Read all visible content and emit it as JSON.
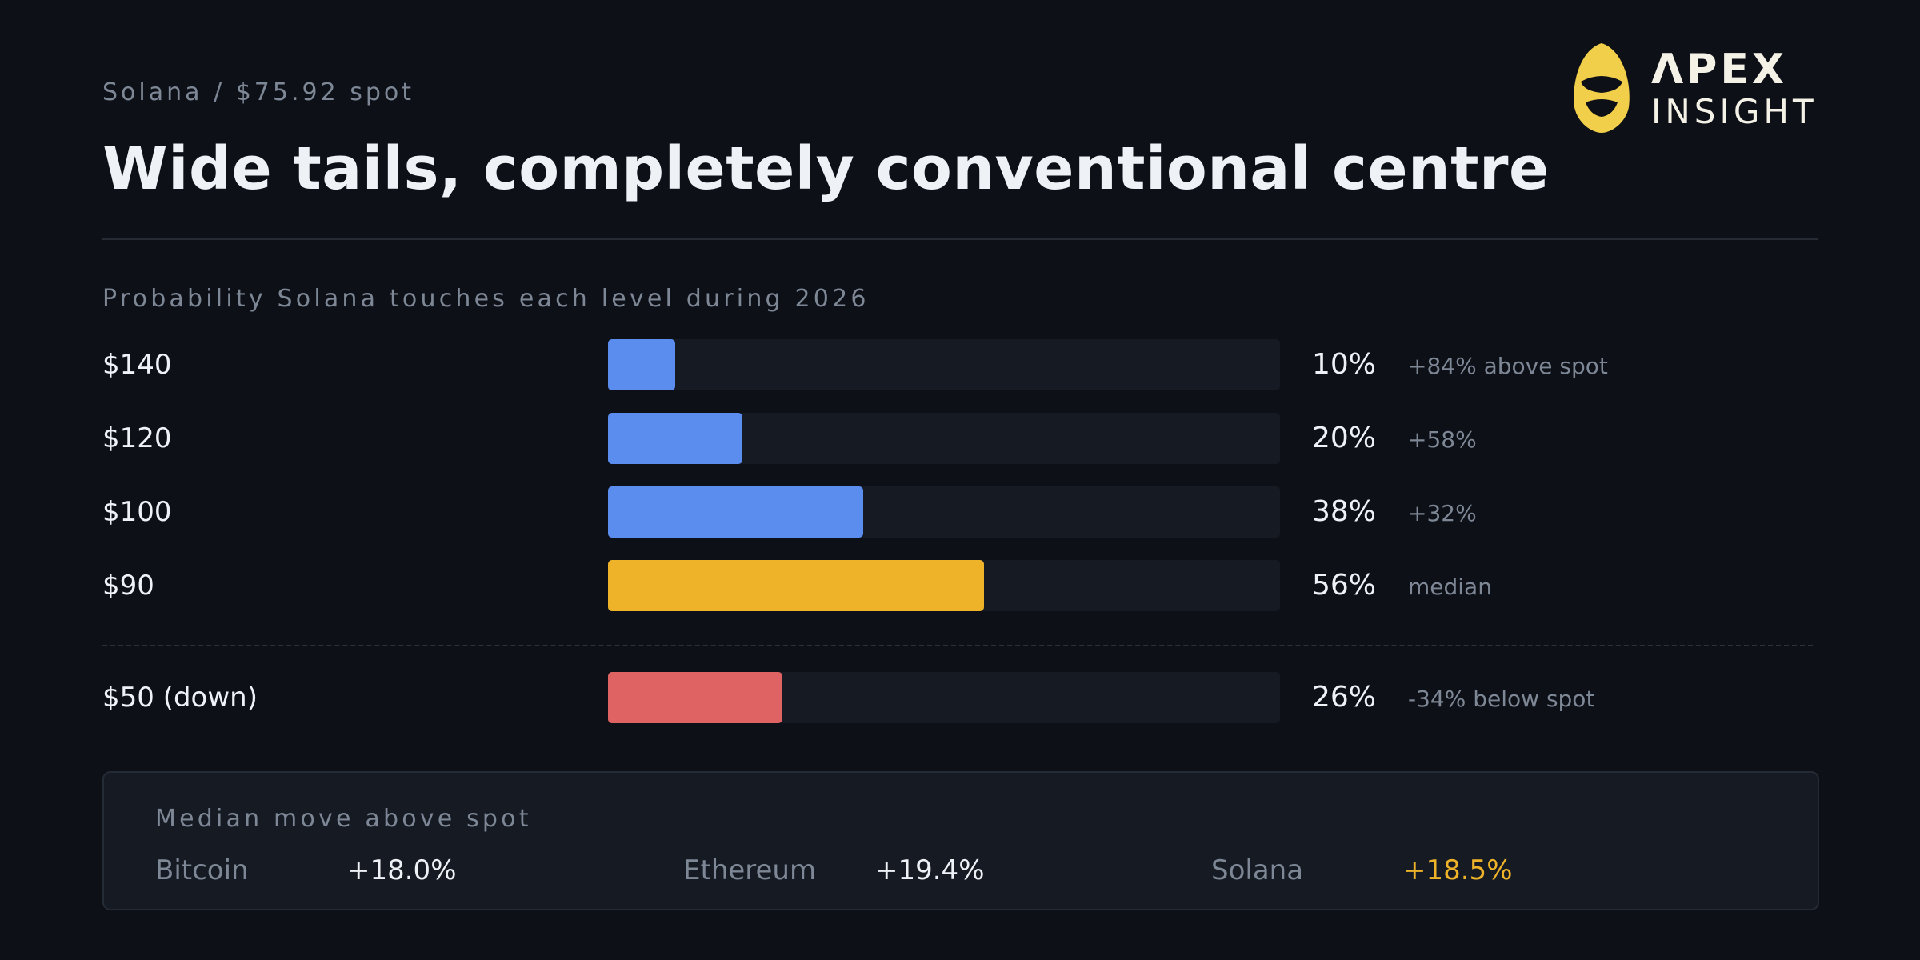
{
  "header": {
    "eyebrow": "Solana / $75.92 spot",
    "title": "Wide tails, completely conventional centre",
    "logo_line1": "ΛPEX",
    "logo_line2": "INSIGHT",
    "logo_color": "#f2cf4a"
  },
  "chart_data": {
    "type": "bar",
    "orientation": "horizontal",
    "title": "Probability Solana touches each level during 2026",
    "xlim": [
      0,
      100
    ],
    "categories": [
      "$140",
      "$120",
      "$100",
      "$90",
      "$50 (down)"
    ],
    "values": [
      10,
      20,
      38,
      56,
      26
    ],
    "value_labels": [
      "10%",
      "20%",
      "38%",
      "56%",
      "26%"
    ],
    "notes": [
      "+84% above spot",
      "+58%",
      "+32%",
      "median",
      "-34% below spot"
    ],
    "colors": [
      "#5b8def",
      "#5b8def",
      "#5b8def",
      "#efb32a",
      "#e06363"
    ]
  },
  "summary": {
    "title": "Median move above spot",
    "items": [
      {
        "name": "Bitcoin",
        "value": "+18.0%",
        "color": "#eef1f6"
      },
      {
        "name": "Ethereum",
        "value": "+19.4%",
        "color": "#eef1f6"
      },
      {
        "name": "Solana",
        "value": "+18.5%",
        "color": "#efb32a"
      }
    ]
  }
}
